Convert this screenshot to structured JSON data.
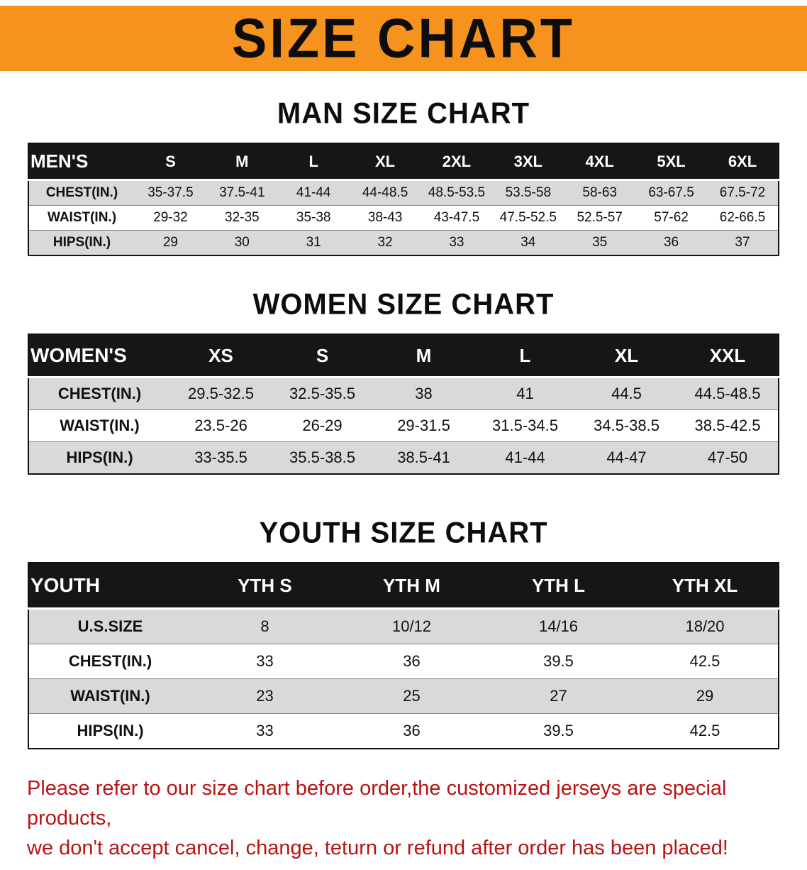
{
  "banner": {
    "title": "SIZE CHART"
  },
  "colors": {
    "banner_bg": "#f6921e",
    "disclaimer_text": "#b81414",
    "table_header_bg": "#161616",
    "row_alt_bg": "#d9d9d9"
  },
  "sections": [
    {
      "key": "mens",
      "heading": "MAN SIZE CHART",
      "table": {
        "header": [
          "MEN'S",
          "S",
          "M",
          "L",
          "XL",
          "2XL",
          "3XL",
          "4XL",
          "5XL",
          "6XL"
        ],
        "rows": [
          [
            "CHEST(IN.)",
            "35-37.5",
            "37.5-41",
            "41-44",
            "44-48.5",
            "48.5-53.5",
            "53.5-58",
            "58-63",
            "63-67.5",
            "67.5-72"
          ],
          [
            "WAIST(IN.)",
            "29-32",
            "32-35",
            "35-38",
            "38-43",
            "43-47.5",
            "47.5-52.5",
            "52.5-57",
            "57-62",
            "62-66.5"
          ],
          [
            "HIPS(IN.)",
            "29",
            "30",
            "31",
            "32",
            "33",
            "34",
            "35",
            "36",
            "37"
          ]
        ]
      }
    },
    {
      "key": "womens",
      "heading": "WOMEN SIZE CHART",
      "table": {
        "header": [
          "WOMEN'S",
          "XS",
          "S",
          "M",
          "L",
          "XL",
          "XXL"
        ],
        "rows": [
          [
            "CHEST(IN.)",
            "29.5-32.5",
            "32.5-35.5",
            "38",
            "41",
            "44.5",
            "44.5-48.5"
          ],
          [
            "WAIST(IN.)",
            "23.5-26",
            "26-29",
            "29-31.5",
            "31.5-34.5",
            "34.5-38.5",
            "38.5-42.5"
          ],
          [
            "HIPS(IN.)",
            "33-35.5",
            "35.5-38.5",
            "38.5-41",
            "41-44",
            "44-47",
            "47-50"
          ]
        ]
      }
    },
    {
      "key": "youth",
      "heading": "YOUTH SIZE CHART",
      "table": {
        "header": [
          "YOUTH",
          "YTH S",
          "YTH M",
          "YTH L",
          "YTH XL"
        ],
        "rows": [
          [
            "U.S.SIZE",
            "8",
            "10/12",
            "14/16",
            "18/20"
          ],
          [
            "CHEST(IN.)",
            "33",
            "36",
            "39.5",
            "42.5"
          ],
          [
            "WAIST(IN.)",
            "23",
            "25",
            "27",
            "29"
          ],
          [
            "HIPS(IN.)",
            "33",
            "36",
            "39.5",
            "42.5"
          ]
        ]
      }
    }
  ],
  "disclaimer": {
    "line1": "Please refer to our size chart before order,the customized jerseys are special products,",
    "line2": "we don't accept cancel, change, teturn or refund after order has been placed!"
  }
}
